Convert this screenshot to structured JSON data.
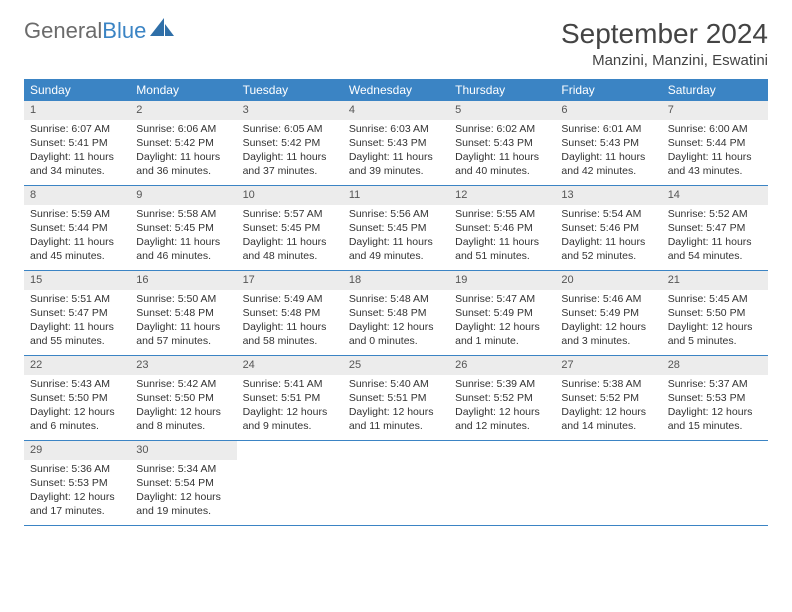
{
  "logo": {
    "text_gray": "General",
    "text_blue": "Blue"
  },
  "title": "September 2024",
  "location": "Manzini, Manzini, Eswatini",
  "colors": {
    "header_blue": "#3b84c4",
    "daynum_bg": "#ececec",
    "text": "#333333",
    "rule": "#3b84c4"
  },
  "weekdays": [
    "Sunday",
    "Monday",
    "Tuesday",
    "Wednesday",
    "Thursday",
    "Friday",
    "Saturday"
  ],
  "weeks": [
    [
      {
        "n": "1",
        "sr": "Sunrise: 6:07 AM",
        "ss": "Sunset: 5:41 PM",
        "d1": "Daylight: 11 hours",
        "d2": "and 34 minutes."
      },
      {
        "n": "2",
        "sr": "Sunrise: 6:06 AM",
        "ss": "Sunset: 5:42 PM",
        "d1": "Daylight: 11 hours",
        "d2": "and 36 minutes."
      },
      {
        "n": "3",
        "sr": "Sunrise: 6:05 AM",
        "ss": "Sunset: 5:42 PM",
        "d1": "Daylight: 11 hours",
        "d2": "and 37 minutes."
      },
      {
        "n": "4",
        "sr": "Sunrise: 6:03 AM",
        "ss": "Sunset: 5:43 PM",
        "d1": "Daylight: 11 hours",
        "d2": "and 39 minutes."
      },
      {
        "n": "5",
        "sr": "Sunrise: 6:02 AM",
        "ss": "Sunset: 5:43 PM",
        "d1": "Daylight: 11 hours",
        "d2": "and 40 minutes."
      },
      {
        "n": "6",
        "sr": "Sunrise: 6:01 AM",
        "ss": "Sunset: 5:43 PM",
        "d1": "Daylight: 11 hours",
        "d2": "and 42 minutes."
      },
      {
        "n": "7",
        "sr": "Sunrise: 6:00 AM",
        "ss": "Sunset: 5:44 PM",
        "d1": "Daylight: 11 hours",
        "d2": "and 43 minutes."
      }
    ],
    [
      {
        "n": "8",
        "sr": "Sunrise: 5:59 AM",
        "ss": "Sunset: 5:44 PM",
        "d1": "Daylight: 11 hours",
        "d2": "and 45 minutes."
      },
      {
        "n": "9",
        "sr": "Sunrise: 5:58 AM",
        "ss": "Sunset: 5:45 PM",
        "d1": "Daylight: 11 hours",
        "d2": "and 46 minutes."
      },
      {
        "n": "10",
        "sr": "Sunrise: 5:57 AM",
        "ss": "Sunset: 5:45 PM",
        "d1": "Daylight: 11 hours",
        "d2": "and 48 minutes."
      },
      {
        "n": "11",
        "sr": "Sunrise: 5:56 AM",
        "ss": "Sunset: 5:45 PM",
        "d1": "Daylight: 11 hours",
        "d2": "and 49 minutes."
      },
      {
        "n": "12",
        "sr": "Sunrise: 5:55 AM",
        "ss": "Sunset: 5:46 PM",
        "d1": "Daylight: 11 hours",
        "d2": "and 51 minutes."
      },
      {
        "n": "13",
        "sr": "Sunrise: 5:54 AM",
        "ss": "Sunset: 5:46 PM",
        "d1": "Daylight: 11 hours",
        "d2": "and 52 minutes."
      },
      {
        "n": "14",
        "sr": "Sunrise: 5:52 AM",
        "ss": "Sunset: 5:47 PM",
        "d1": "Daylight: 11 hours",
        "d2": "and 54 minutes."
      }
    ],
    [
      {
        "n": "15",
        "sr": "Sunrise: 5:51 AM",
        "ss": "Sunset: 5:47 PM",
        "d1": "Daylight: 11 hours",
        "d2": "and 55 minutes."
      },
      {
        "n": "16",
        "sr": "Sunrise: 5:50 AM",
        "ss": "Sunset: 5:48 PM",
        "d1": "Daylight: 11 hours",
        "d2": "and 57 minutes."
      },
      {
        "n": "17",
        "sr": "Sunrise: 5:49 AM",
        "ss": "Sunset: 5:48 PM",
        "d1": "Daylight: 11 hours",
        "d2": "and 58 minutes."
      },
      {
        "n": "18",
        "sr": "Sunrise: 5:48 AM",
        "ss": "Sunset: 5:48 PM",
        "d1": "Daylight: 12 hours",
        "d2": "and 0 minutes."
      },
      {
        "n": "19",
        "sr": "Sunrise: 5:47 AM",
        "ss": "Sunset: 5:49 PM",
        "d1": "Daylight: 12 hours",
        "d2": "and 1 minute."
      },
      {
        "n": "20",
        "sr": "Sunrise: 5:46 AM",
        "ss": "Sunset: 5:49 PM",
        "d1": "Daylight: 12 hours",
        "d2": "and 3 minutes."
      },
      {
        "n": "21",
        "sr": "Sunrise: 5:45 AM",
        "ss": "Sunset: 5:50 PM",
        "d1": "Daylight: 12 hours",
        "d2": "and 5 minutes."
      }
    ],
    [
      {
        "n": "22",
        "sr": "Sunrise: 5:43 AM",
        "ss": "Sunset: 5:50 PM",
        "d1": "Daylight: 12 hours",
        "d2": "and 6 minutes."
      },
      {
        "n": "23",
        "sr": "Sunrise: 5:42 AM",
        "ss": "Sunset: 5:50 PM",
        "d1": "Daylight: 12 hours",
        "d2": "and 8 minutes."
      },
      {
        "n": "24",
        "sr": "Sunrise: 5:41 AM",
        "ss": "Sunset: 5:51 PM",
        "d1": "Daylight: 12 hours",
        "d2": "and 9 minutes."
      },
      {
        "n": "25",
        "sr": "Sunrise: 5:40 AM",
        "ss": "Sunset: 5:51 PM",
        "d1": "Daylight: 12 hours",
        "d2": "and 11 minutes."
      },
      {
        "n": "26",
        "sr": "Sunrise: 5:39 AM",
        "ss": "Sunset: 5:52 PM",
        "d1": "Daylight: 12 hours",
        "d2": "and 12 minutes."
      },
      {
        "n": "27",
        "sr": "Sunrise: 5:38 AM",
        "ss": "Sunset: 5:52 PM",
        "d1": "Daylight: 12 hours",
        "d2": "and 14 minutes."
      },
      {
        "n": "28",
        "sr": "Sunrise: 5:37 AM",
        "ss": "Sunset: 5:53 PM",
        "d1": "Daylight: 12 hours",
        "d2": "and 15 minutes."
      }
    ],
    [
      {
        "n": "29",
        "sr": "Sunrise: 5:36 AM",
        "ss": "Sunset: 5:53 PM",
        "d1": "Daylight: 12 hours",
        "d2": "and 17 minutes."
      },
      {
        "n": "30",
        "sr": "Sunrise: 5:34 AM",
        "ss": "Sunset: 5:54 PM",
        "d1": "Daylight: 12 hours",
        "d2": "and 19 minutes."
      },
      null,
      null,
      null,
      null,
      null
    ]
  ]
}
